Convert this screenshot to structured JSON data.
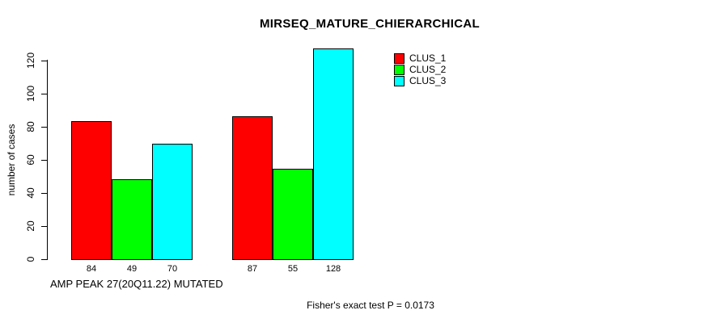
{
  "chart_data": {
    "type": "bar",
    "title": "MIRSEQ_MATURE_CHIERARCHICAL",
    "ylabel": "number of cases",
    "xlabel": "AMP PEAK 27(20Q11.22) MUTATED",
    "footnote": "Fisher's exact test P = 0.0173",
    "categories": [
      "group-1",
      "group-2"
    ],
    "series": [
      {
        "name": "CLUS_1",
        "color": "#ff0000",
        "values": [
          84,
          87
        ]
      },
      {
        "name": "CLUS_2",
        "color": "#00ff00",
        "values": [
          49,
          55
        ]
      },
      {
        "name": "CLUS_3",
        "color": "#00ffff",
        "values": [
          70,
          128
        ]
      }
    ],
    "bar_value_labels": [
      [
        84,
        49,
        70
      ],
      [
        87,
        55,
        128
      ]
    ],
    "yticks": [
      0,
      20,
      40,
      60,
      80,
      100,
      120
    ],
    "ylim": [
      0,
      120
    ],
    "grid": false,
    "legend_position": "top-right",
    "axis_color": "#000000",
    "background_color": "#ffffff"
  }
}
